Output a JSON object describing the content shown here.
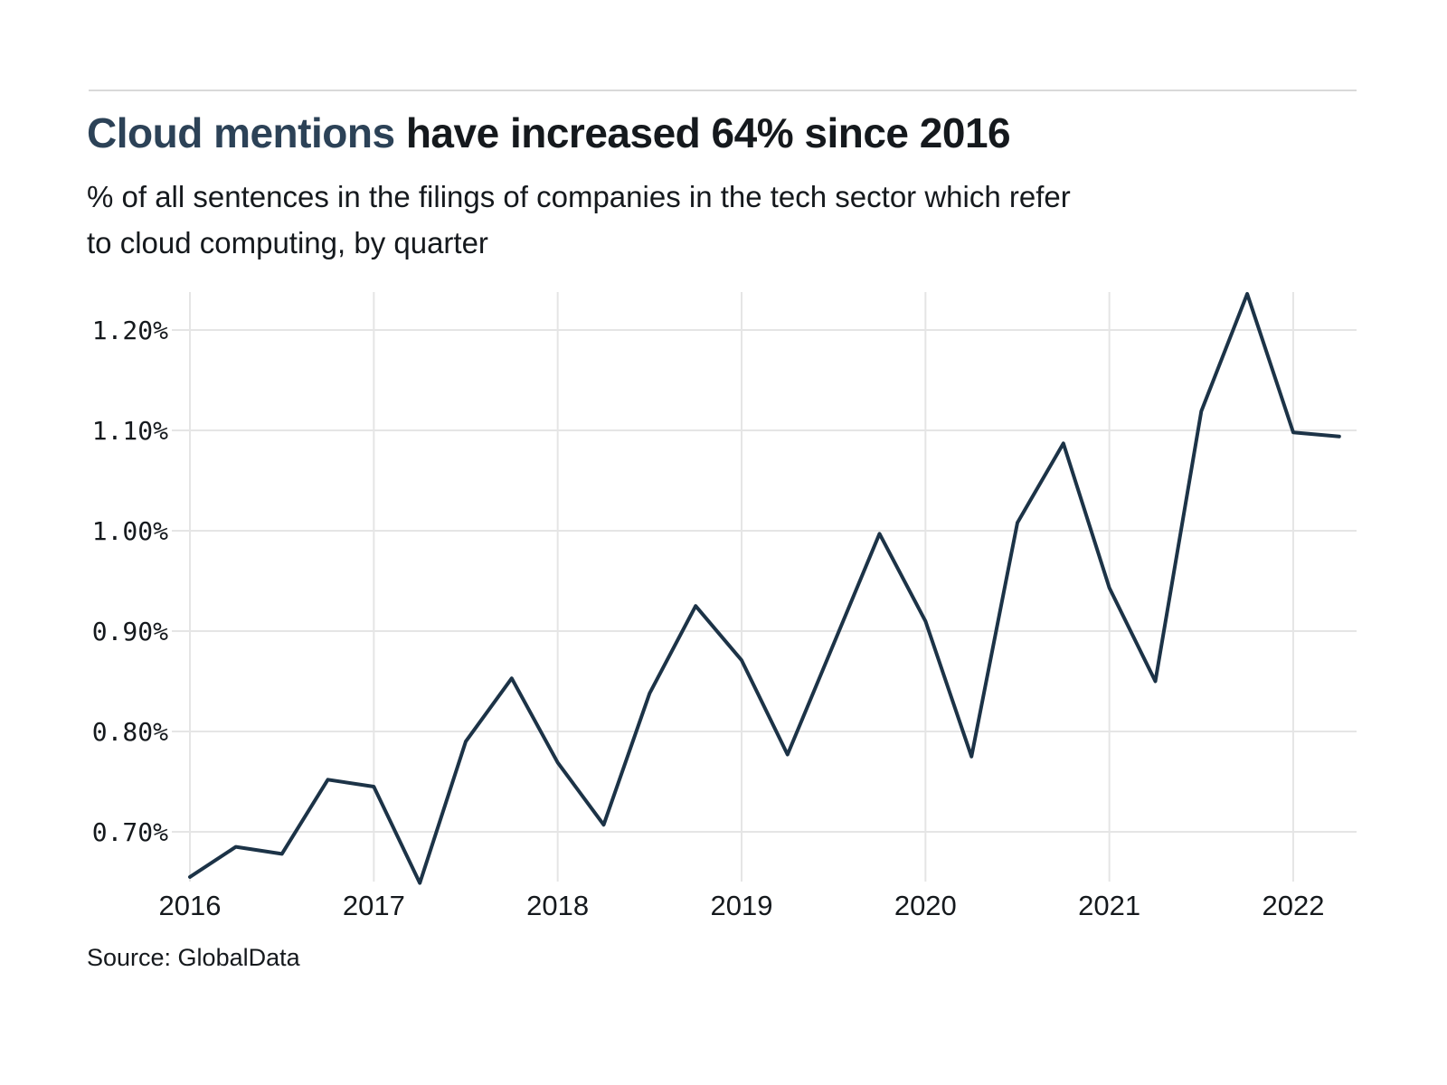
{
  "page": {
    "title": {
      "highlight": "Cloud mentions",
      "rest": " have increased 64% since 2016"
    },
    "subtitle_lines": [
      "% of all sentences in the filings of companies in the tech sector which refer",
      "to cloud computing, by quarter"
    ],
    "source": "Source: GlobalData"
  },
  "colors": {
    "line": "#1c3347",
    "title_highlight": "#2c4257",
    "text": "#15191d",
    "gridline": "#e5e5e5",
    "top_rule": "#d9d9d9"
  },
  "chart_data": {
    "type": "line",
    "title": "Cloud mentions have increased 64% since 2016",
    "subtitle": "% of all sentences in the filings of companies in the tech sector which refer to cloud computing, by quarter",
    "source": "Source: GlobalData",
    "unit": "%",
    "grid": true,
    "legend": "none",
    "categories": [
      "2016 Q1",
      "2016 Q2",
      "2016 Q3",
      "2016 Q4",
      "2017 Q1",
      "2017 Q2",
      "2017 Q3",
      "2017 Q4",
      "2018 Q1",
      "2018 Q2",
      "2018 Q3",
      "2018 Q4",
      "2019 Q1",
      "2019 Q2",
      "2019 Q3",
      "2019 Q4",
      "2020 Q1",
      "2020 Q2",
      "2020 Q3",
      "2020 Q4",
      "2021 Q1",
      "2021 Q2",
      "2021 Q3",
      "2021 Q4",
      "2022 Q1",
      "2022 Q2"
    ],
    "values": [
      0.655,
      0.685,
      0.678,
      0.752,
      0.745,
      0.649,
      0.79,
      0.853,
      0.769,
      0.707,
      0.838,
      0.925,
      0.871,
      0.777,
      0.887,
      0.997,
      0.91,
      0.775,
      1.008,
      1.087,
      0.943,
      0.85,
      1.119,
      1.236,
      1.098,
      1.094
    ],
    "ylim": [
      0.645,
      1.25
    ],
    "yticks": {
      "values": [
        0.7,
        0.8,
        0.9,
        1.0,
        1.1,
        1.2
      ],
      "labels": [
        "0.70%",
        "0.80%",
        "0.90%",
        "1.00%",
        "1.10%",
        "1.20%"
      ]
    },
    "xticks": {
      "labels": [
        "2016",
        "2017",
        "2018",
        "2019",
        "2020",
        "2021",
        "2022"
      ],
      "quarters_per_year": 4
    }
  }
}
